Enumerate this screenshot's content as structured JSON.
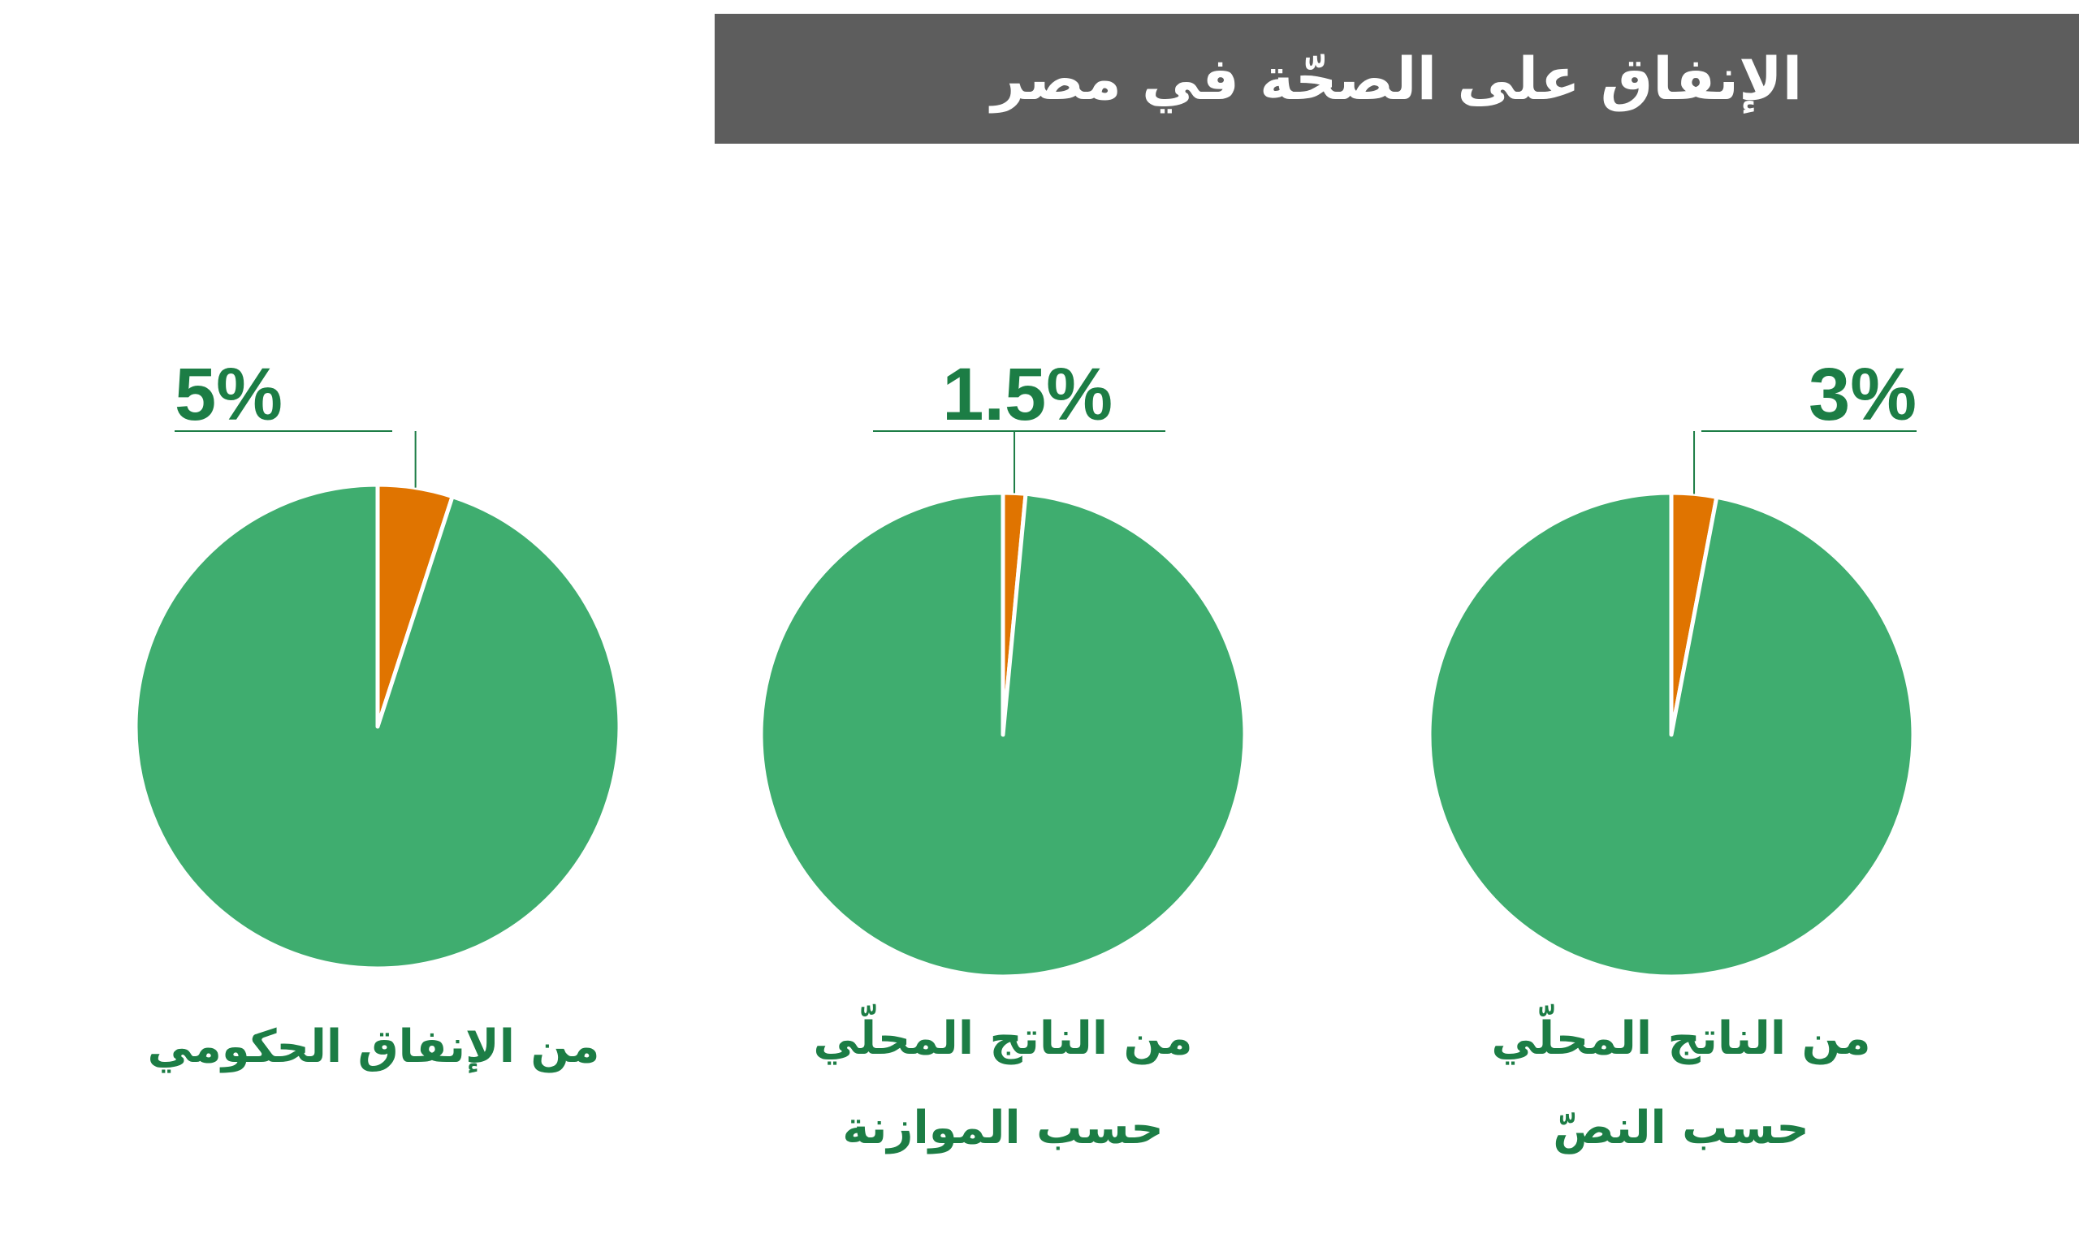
{
  "title": "الإنفاق على الصحّة في مصر",
  "colors": {
    "title_bar": "#5d5d5d",
    "title_text": "#ffffff",
    "main_slice": "#3fad6f",
    "highlight_slice": "#e07400",
    "label_text": "#1c7d45",
    "leader_line": "#1c7d45"
  },
  "chart_data": [
    {
      "type": "pie",
      "label": "5%",
      "caption_lines": [
        "من الإنفاق الحكومي"
      ],
      "slices": [
        {
          "value": 5,
          "color_key": "highlight_slice"
        },
        {
          "value": 95,
          "color_key": "main_slice"
        }
      ]
    },
    {
      "type": "pie",
      "label": "1.5%",
      "caption_lines": [
        "من الناتج المحلّي",
        "حسب الموازنة"
      ],
      "slices": [
        {
          "value": 1.5,
          "color_key": "highlight_slice"
        },
        {
          "value": 98.5,
          "color_key": "main_slice"
        }
      ]
    },
    {
      "type": "pie",
      "label": "3%",
      "caption_lines": [
        "من الناتج المحلّي",
        "حسب النصّ"
      ],
      "slices": [
        {
          "value": 3,
          "color_key": "highlight_slice"
        },
        {
          "value": 97,
          "color_key": "main_slice"
        }
      ]
    }
  ]
}
